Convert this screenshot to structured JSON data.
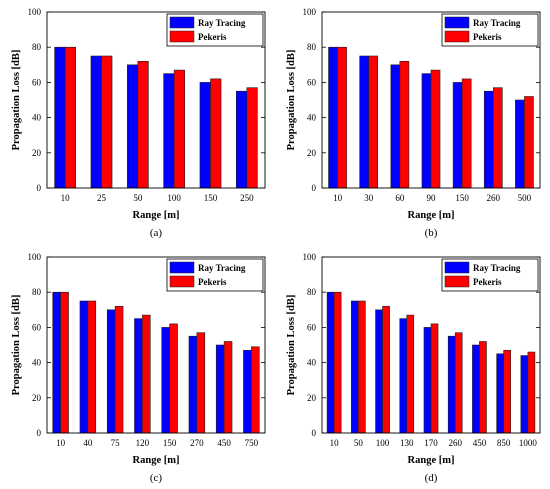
{
  "colors": {
    "ray_tracing": "#0000ff",
    "pekeris": "#ff0000",
    "axis": "#000000",
    "bar_edge": "#222222"
  },
  "chart_data": [
    {
      "type": "bar",
      "panel_label": "(a)",
      "xlabel": "Range [m]",
      "ylabel": "Propagation Loss [dB]",
      "ylim": [
        0,
        100
      ],
      "yticks": [
        0,
        20,
        40,
        60,
        80,
        100
      ],
      "grid": false,
      "legend": "top-right",
      "categories": [
        "10",
        "25",
        "50",
        "100",
        "150",
        "250"
      ],
      "series": [
        {
          "name": "Ray Tracing",
          "values": [
            80,
            75,
            70,
            65,
            60,
            55
          ]
        },
        {
          "name": "Pekeris",
          "values": [
            80,
            75,
            72,
            67,
            62,
            57
          ]
        }
      ]
    },
    {
      "type": "bar",
      "panel_label": "(b)",
      "xlabel": "Range [m]",
      "ylabel": "Propagation Loss [dB]",
      "ylim": [
        0,
        100
      ],
      "yticks": [
        0,
        20,
        40,
        60,
        80,
        100
      ],
      "grid": false,
      "legend": "top-right",
      "categories": [
        "10",
        "30",
        "60",
        "90",
        "150",
        "260",
        "500"
      ],
      "series": [
        {
          "name": "Ray Tracing",
          "values": [
            80,
            75,
            70,
            65,
            60,
            55,
            50
          ]
        },
        {
          "name": "Pekeris",
          "values": [
            80,
            75,
            72,
            67,
            62,
            57,
            52
          ]
        }
      ]
    },
    {
      "type": "bar",
      "panel_label": "(c)",
      "xlabel": "Range [m]",
      "ylabel": "Propagation Loss [dB]",
      "ylim": [
        0,
        100
      ],
      "yticks": [
        0,
        20,
        40,
        60,
        80,
        100
      ],
      "grid": false,
      "legend": "top-right",
      "categories": [
        "10",
        "40",
        "75",
        "120",
        "150",
        "270",
        "450",
        "750"
      ],
      "series": [
        {
          "name": "Ray Tracing",
          "values": [
            80,
            75,
            70,
            65,
            60,
            55,
            50,
            47
          ]
        },
        {
          "name": "Pekeris",
          "values": [
            80,
            75,
            72,
            67,
            62,
            57,
            52,
            49
          ]
        }
      ]
    },
    {
      "type": "bar",
      "panel_label": "(d)",
      "xlabel": "Range [m]",
      "ylabel": "Propagation Loss [dB]",
      "ylim": [
        0,
        100
      ],
      "yticks": [
        0,
        20,
        40,
        60,
        80,
        100
      ],
      "grid": false,
      "legend": "top-right",
      "categories": [
        "10",
        "50",
        "100",
        "130",
        "170",
        "260",
        "450",
        "850",
        "1000"
      ],
      "series": [
        {
          "name": "Ray Tracing",
          "values": [
            80,
            75,
            70,
            65,
            60,
            55,
            50,
            45,
            44
          ]
        },
        {
          "name": "Pekeris",
          "values": [
            80,
            75,
            72,
            67,
            62,
            57,
            52,
            47,
            46
          ]
        }
      ]
    }
  ]
}
